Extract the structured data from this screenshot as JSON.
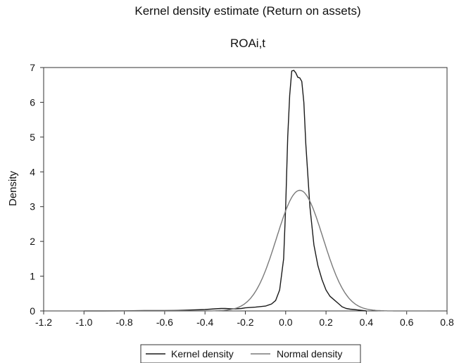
{
  "chart_data": {
    "type": "line",
    "title": "Kernel density estimate (Return on assets)",
    "subtitle": "ROAi,t",
    "xlabel": "",
    "ylabel": "Density",
    "xlim": [
      -1.2,
      0.8
    ],
    "ylim": [
      0,
      7
    ],
    "xticks": [
      "-1.2",
      "-1.0",
      "-0.8",
      "-0.6",
      "-0.4",
      "-0.2",
      "0.0",
      "0.2",
      "0.4",
      "0.6",
      "0.8"
    ],
    "yticks": [
      "0",
      "1",
      "2",
      "3",
      "4",
      "5",
      "6",
      "7"
    ],
    "grid": false,
    "legend_position": "bottom",
    "series": [
      {
        "name": "Kernel density",
        "color": "#1a1a1a",
        "points": [
          [
            -1.0,
            0.0
          ],
          [
            -0.9,
            0.0
          ],
          [
            -0.8,
            0.005
          ],
          [
            -0.7,
            0.01
          ],
          [
            -0.6,
            0.01
          ],
          [
            -0.55,
            0.015
          ],
          [
            -0.5,
            0.02
          ],
          [
            -0.45,
            0.03
          ],
          [
            -0.4,
            0.04
          ],
          [
            -0.35,
            0.06
          ],
          [
            -0.32,
            0.07
          ],
          [
            -0.3,
            0.07
          ],
          [
            -0.27,
            0.06
          ],
          [
            -0.25,
            0.06
          ],
          [
            -0.22,
            0.07
          ],
          [
            -0.2,
            0.09
          ],
          [
            -0.15,
            0.11
          ],
          [
            -0.1,
            0.14
          ],
          [
            -0.07,
            0.2
          ],
          [
            -0.05,
            0.3
          ],
          [
            -0.03,
            0.6
          ],
          [
            -0.01,
            1.5
          ],
          [
            0.0,
            3.0
          ],
          [
            0.01,
            5.0
          ],
          [
            0.02,
            6.2
          ],
          [
            0.03,
            6.9
          ],
          [
            0.04,
            6.92
          ],
          [
            0.05,
            6.85
          ],
          [
            0.06,
            6.72
          ],
          [
            0.07,
            6.7
          ],
          [
            0.08,
            6.6
          ],
          [
            0.09,
            6.0
          ],
          [
            0.1,
            4.8
          ],
          [
            0.12,
            3.0
          ],
          [
            0.14,
            1.9
          ],
          [
            0.16,
            1.3
          ],
          [
            0.18,
            0.9
          ],
          [
            0.2,
            0.6
          ],
          [
            0.22,
            0.42
          ],
          [
            0.24,
            0.32
          ],
          [
            0.26,
            0.22
          ],
          [
            0.28,
            0.12
          ],
          [
            0.3,
            0.07
          ],
          [
            0.32,
            0.05
          ],
          [
            0.34,
            0.04
          ],
          [
            0.37,
            0.02
          ],
          [
            0.4,
            0.0
          ]
        ]
      },
      {
        "name": "Normal density",
        "color": "#7a7a7a",
        "distribution": {
          "mean": 0.07,
          "sd": 0.115
        },
        "x_range": [
          -1.0,
          0.7
        ]
      }
    ]
  }
}
